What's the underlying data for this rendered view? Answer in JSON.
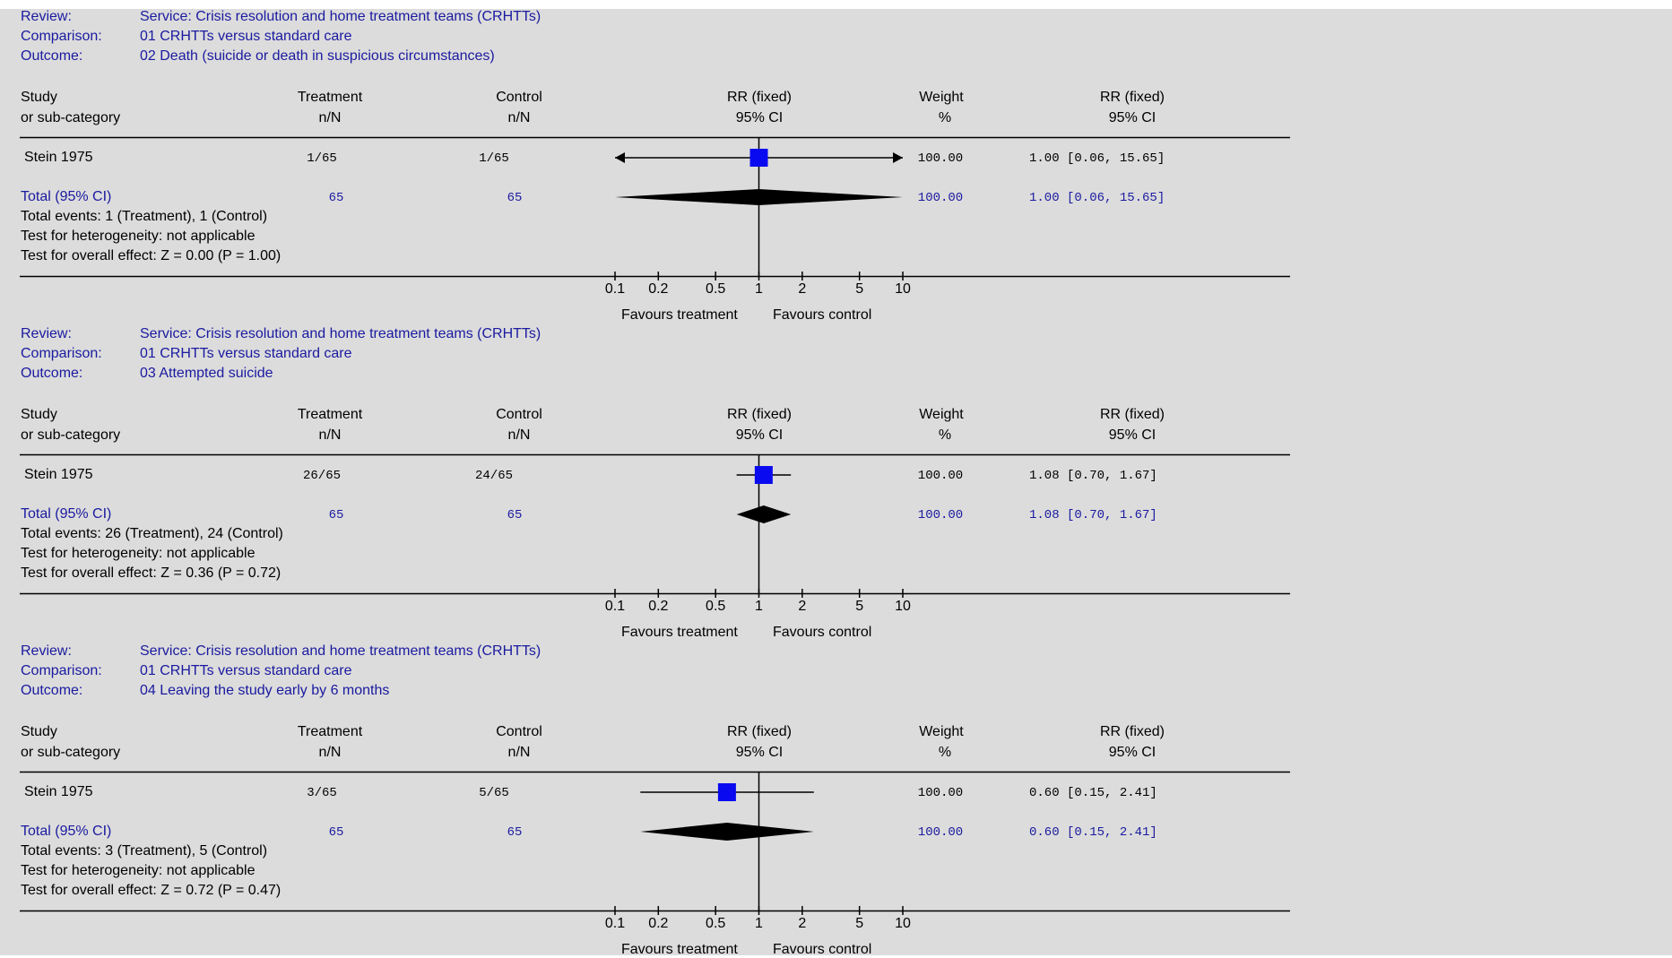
{
  "header_labels": {
    "review": "Review:",
    "comparison": "Comparison:",
    "outcome": "Outcome:",
    "study": "Study",
    "subcategory": "or sub-category",
    "treatment": "Treatment",
    "control": "Control",
    "nN": "n/N",
    "rr_fixed": "RR (fixed)",
    "ci95": "95% CI",
    "weight": "Weight",
    "pct": "%"
  },
  "axis": {
    "ticks": [
      "0.1",
      "0.2",
      "0.5",
      "1",
      "2",
      "5",
      "10"
    ],
    "favours_treatment": "Favours treatment",
    "favours_control": "Favours control"
  },
  "colors": {
    "background": "#dcdcdc",
    "blue_text": "#1a1aa0",
    "marker": "#0a0af0"
  },
  "panels": [
    {
      "review": "Service: Crisis resolution and home treatment teams (CRHTTs)",
      "comparison": "01 CRHTTs versus standard care",
      "outcome": "02 Death (suicide or death in suspicious circumstances)",
      "study": {
        "name": "Stein 1975",
        "treatment": "1/65",
        "control": "1/65",
        "weight": "100.00",
        "ci_text": "1.00 [0.06, 15.65]"
      },
      "total": {
        "label": "Total (95% CI)",
        "treatment": "65",
        "control": "65",
        "weight": "100.00",
        "ci_text": "1.00 [0.06, 15.65]"
      },
      "events": "Total events: 1 (Treatment), 1 (Control)",
      "heterogeneity": "Test for heterogeneity: not applicable",
      "overall": "Test for overall effect: Z = 0.00 (P = 1.00)"
    },
    {
      "review": "Service: Crisis resolution and home treatment teams (CRHTTs)",
      "comparison": "01 CRHTTs versus standard care",
      "outcome": "03 Attempted suicide",
      "study": {
        "name": "Stein 1975",
        "treatment": "26/65",
        "control": "24/65",
        "weight": "100.00",
        "ci_text": "1.08 [0.70, 1.67]"
      },
      "total": {
        "label": "Total (95% CI)",
        "treatment": "65",
        "control": "65",
        "weight": "100.00",
        "ci_text": "1.08 [0.70, 1.67]"
      },
      "events": "Total events: 26 (Treatment), 24 (Control)",
      "heterogeneity": "Test for heterogeneity: not applicable",
      "overall": "Test for overall effect: Z = 0.36 (P = 0.72)"
    },
    {
      "review": "Service: Crisis resolution and home treatment teams (CRHTTs)",
      "comparison": "01 CRHTTs versus standard care",
      "outcome": "04 Leaving the study early by 6 months",
      "study": {
        "name": "Stein 1975",
        "treatment": "3/65",
        "control": "5/65",
        "weight": "100.00",
        "ci_text": "0.60 [0.15, 2.41]"
      },
      "total": {
        "label": "Total (95% CI)",
        "treatment": "65",
        "control": "65",
        "weight": "100.00",
        "ci_text": "0.60 [0.15, 2.41]"
      },
      "events": "Total events: 3 (Treatment), 5 (Control)",
      "heterogeneity": "Test for heterogeneity: not applicable",
      "overall": "Test for overall effect: Z = 0.72 (P = 0.47)"
    }
  ],
  "chart_data": [
    {
      "type": "forest",
      "scale": "log",
      "xlim": [
        0.1,
        10
      ],
      "series": [
        {
          "name": "Stein 1975",
          "rr": 1.0,
          "ci": [
            0.06,
            15.65
          ],
          "weight": 100.0,
          "ci_exceeds_axis": true
        },
        {
          "name": "Total (95% CI)",
          "rr": 1.0,
          "ci": [
            0.06,
            15.65
          ]
        }
      ]
    },
    {
      "type": "forest",
      "scale": "log",
      "xlim": [
        0.1,
        10
      ],
      "series": [
        {
          "name": "Stein 1975",
          "rr": 1.08,
          "ci": [
            0.7,
            1.67
          ],
          "weight": 100.0
        },
        {
          "name": "Total (95% CI)",
          "rr": 1.08,
          "ci": [
            0.7,
            1.67
          ]
        }
      ]
    },
    {
      "type": "forest",
      "scale": "log",
      "xlim": [
        0.1,
        10
      ],
      "series": [
        {
          "name": "Stein 1975",
          "rr": 0.6,
          "ci": [
            0.15,
            2.41
          ],
          "weight": 100.0
        },
        {
          "name": "Total (95% CI)",
          "rr": 0.6,
          "ci": [
            0.15,
            2.41
          ]
        }
      ]
    }
  ]
}
